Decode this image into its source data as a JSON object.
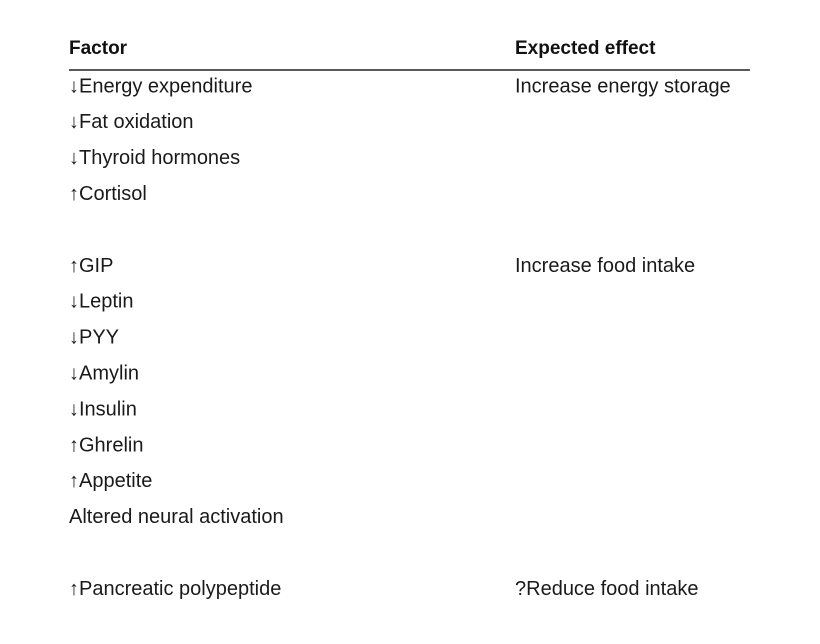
{
  "table": {
    "header": [
      "Factor",
      "Expected effect"
    ],
    "groups": [
      {
        "factors": [
          "↓Energy expenditure",
          "↓Fat oxidation",
          "↓Thyroid hormones",
          "↑Cortisol"
        ],
        "effect": "Increase energy storage"
      },
      {
        "factors": [
          "↑GIP",
          "↓Leptin",
          "↓PYY",
          "↓Amylin",
          "↓Insulin",
          "↑Ghrelin",
          "↑Appetite",
          "Altered neural activation"
        ],
        "effect": "Increase food intake"
      },
      {
        "factors": [
          "↑Pancreatic polypeptide"
        ],
        "effect": "?Reduce food intake"
      }
    ]
  }
}
